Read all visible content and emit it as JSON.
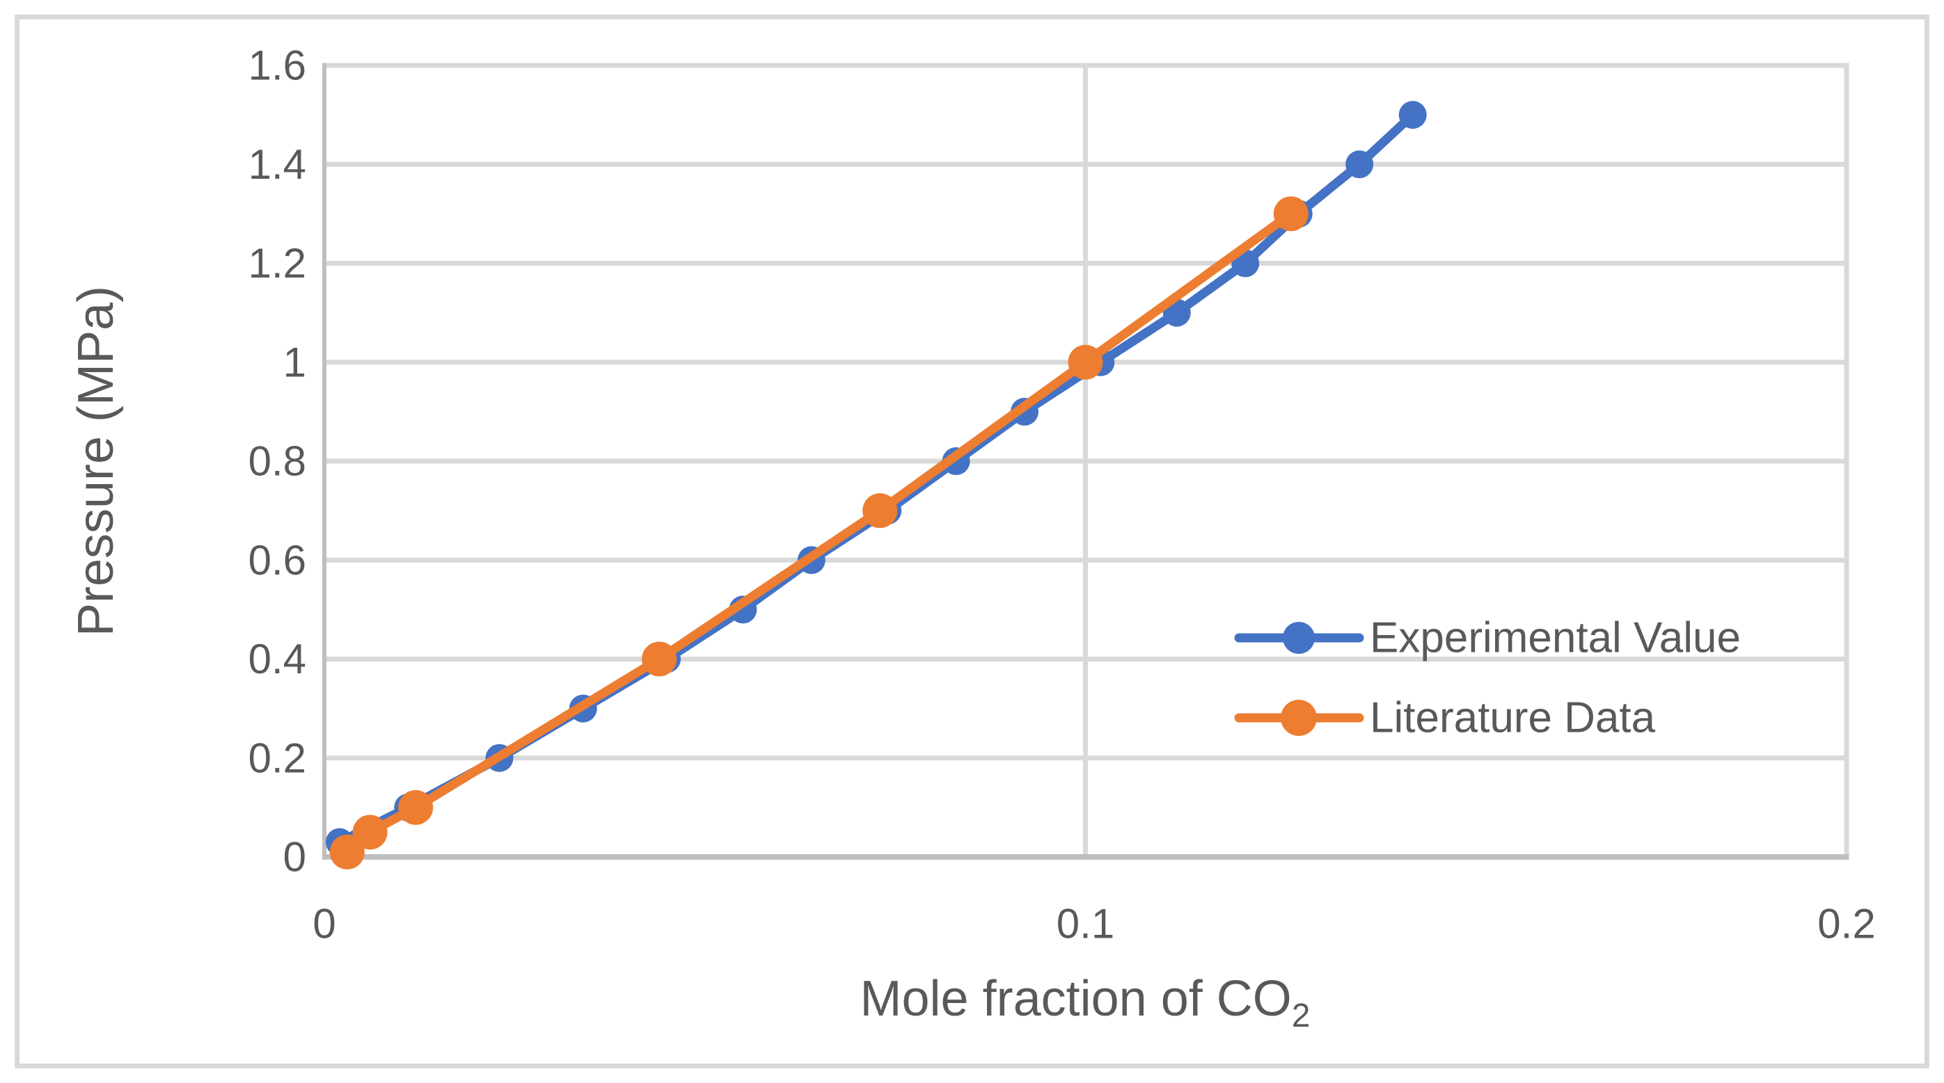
{
  "figure": {
    "background": "#FFFFFF",
    "border_color": "#D9D9D9"
  },
  "colors": {
    "text": "#595959",
    "gridline": "#D9D9D9",
    "axis_line": "#BFBFBF",
    "experimental_blue": "#4472C4",
    "literature_orange": "#ED7D31"
  },
  "chart_data": {
    "type": "line",
    "title": "",
    "xlabel": "Mole fraction of CO",
    "xlabel_subscript": "2",
    "ylabel": "Pressure (MPa)",
    "xlim": [
      0,
      0.2
    ],
    "ylim": [
      0,
      1.6
    ],
    "grid": true,
    "legend_position": "inside-right",
    "x_ticks": [
      {
        "value": 0,
        "label": "0"
      },
      {
        "value": 0.1,
        "label": "0.1"
      },
      {
        "value": 0.2,
        "label": "0.2"
      }
    ],
    "y_ticks": [
      {
        "value": 0,
        "label": "0"
      },
      {
        "value": 0.2,
        "label": "0.2"
      },
      {
        "value": 0.4,
        "label": "0.4"
      },
      {
        "value": 0.6,
        "label": "0.6"
      },
      {
        "value": 0.8,
        "label": "0.8"
      },
      {
        "value": 1,
        "label": "1"
      },
      {
        "value": 1.2,
        "label": "1.2"
      },
      {
        "value": 1.4,
        "label": "1.4"
      },
      {
        "value": 1.6,
        "label": "1.6"
      }
    ],
    "series": [
      {
        "name": "Experimental Value",
        "color": "#4472C4",
        "marker": "circle",
        "marker_radius": 20,
        "legend_marker_radius": 23,
        "line_width": 13,
        "points": [
          [
            0.002,
            0.03
          ],
          [
            0.011,
            0.1
          ],
          [
            0.023,
            0.2
          ],
          [
            0.034,
            0.3
          ],
          [
            0.045,
            0.4
          ],
          [
            0.055,
            0.5
          ],
          [
            0.064,
            0.6
          ],
          [
            0.074,
            0.7
          ],
          [
            0.083,
            0.8
          ],
          [
            0.092,
            0.9
          ],
          [
            0.102,
            1.0
          ],
          [
            0.112,
            1.1
          ],
          [
            0.121,
            1.2
          ],
          [
            0.128,
            1.3
          ],
          [
            0.136,
            1.4
          ],
          [
            0.143,
            1.5
          ]
        ]
      },
      {
        "name": "Literature Data",
        "color": "#ED7D31",
        "marker": "circle",
        "marker_radius": 25,
        "legend_marker_radius": 26,
        "line_width": 13,
        "points": [
          [
            0.003,
            0.01
          ],
          [
            0.006,
            0.05
          ],
          [
            0.012,
            0.1
          ],
          [
            0.044,
            0.4
          ],
          [
            0.073,
            0.7
          ],
          [
            0.1,
            1.0
          ],
          [
            0.127,
            1.3
          ]
        ]
      }
    ]
  }
}
